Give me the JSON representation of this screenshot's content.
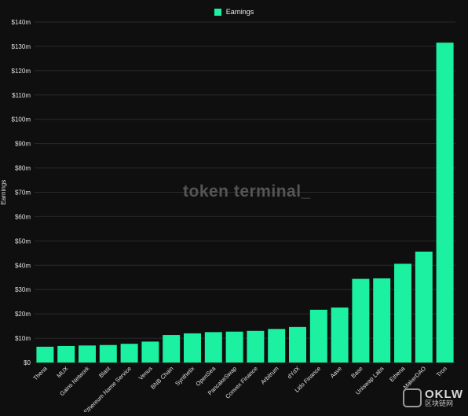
{
  "chart_data": {
    "type": "bar",
    "title": "",
    "xlabel": "",
    "ylabel": "Earnings",
    "legend": {
      "position": "top-center",
      "entries": [
        "Earnings"
      ]
    },
    "grid": true,
    "ylim": [
      0,
      140
    ],
    "yticks": [
      "$0",
      "$10m",
      "$20m",
      "$30m",
      "$40m",
      "$50m",
      "$60m",
      "$70m",
      "$80m",
      "$90m",
      "$100m",
      "$110m",
      "$120m",
      "$130m",
      "$140m"
    ],
    "categories": [
      "Thena",
      "MUX",
      "Gains Network",
      "Blast",
      "Ethereum Name Service",
      "Venus",
      "BNB Chain",
      "Synthetix",
      "OpenSea",
      "PancakeSwap",
      "Convex Finance",
      "Arbitrum",
      "dYdX",
      "Lido Finance",
      "Aave",
      "Base",
      "Uniswap Labs",
      "Ethena",
      "MakerDAO",
      "Tron"
    ],
    "series": [
      {
        "name": "Earnings",
        "values": [
          6.5,
          6.8,
          7.0,
          7.2,
          7.7,
          8.6,
          11.3,
          12.0,
          12.5,
          12.7,
          13.0,
          13.8,
          14.6,
          21.7,
          22.6,
          34.4,
          34.6,
          40.6,
          45.6,
          131.5
        ]
      }
    ],
    "colors": {
      "bar": "#1cf1a1",
      "background": "#0f0f0f",
      "grid": "#2a2a2a",
      "text": "#e0e0e0"
    }
  },
  "watermark": "token terminal_",
  "brand": {
    "name": "OKLW",
    "sub": "区块链网"
  }
}
